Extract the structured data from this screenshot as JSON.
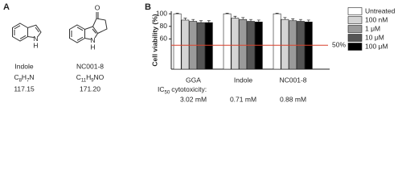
{
  "panel_a": {
    "label": "A",
    "compounds": [
      {
        "name": "Indole",
        "formula": [
          "C",
          "8",
          "H",
          "7",
          "N"
        ],
        "mw": "117.15",
        "atoms": [
          "N",
          "H"
        ]
      },
      {
        "name": "NC001-8",
        "formula": [
          "C",
          "11",
          "H",
          "9",
          "NO"
        ],
        "mw": "171.20",
        "atoms": [
          "O",
          "N",
          "H"
        ]
      }
    ]
  },
  "chart_data": {
    "type": "bar",
    "panel_label": "B",
    "y_label": "Cell viability (%)",
    "categories": [
      "GGA",
      "Indole",
      "NC001-8"
    ],
    "series": [
      {
        "name": "Untreated",
        "color": "#ffffff",
        "values": [
          100,
          100,
          100
        ],
        "errors": [
          1,
          1,
          1
        ]
      },
      {
        "name": "100 nM",
        "color": "#d4d4d4",
        "values": [
          90,
          93,
          91
        ],
        "errors": [
          3,
          3,
          3
        ]
      },
      {
        "name": "1 μM",
        "color": "#9a9a9a",
        "values": [
          88,
          91,
          89
        ],
        "errors": [
          3,
          3,
          3
        ]
      },
      {
        "name": "10 μM",
        "color": "#555555",
        "values": [
          86,
          88,
          88
        ],
        "errors": [
          3,
          3,
          3
        ]
      },
      {
        "name": "100 μM",
        "color": "#000000",
        "values": [
          86,
          87,
          87
        ],
        "errors": [
          3,
          3,
          3
        ]
      }
    ],
    "ylim": [
      12,
      104
    ],
    "yticks": [
      60,
      80,
      100
    ],
    "reference_line": {
      "value": 50,
      "label": "50%",
      "color": "#d9412b"
    },
    "ic50_title": [
      "IC",
      "50",
      "cytotoxicity:"
    ],
    "ic50_labels": [
      "3.02 mM",
      "0.71 mM",
      "0.88 mM"
    ]
  }
}
